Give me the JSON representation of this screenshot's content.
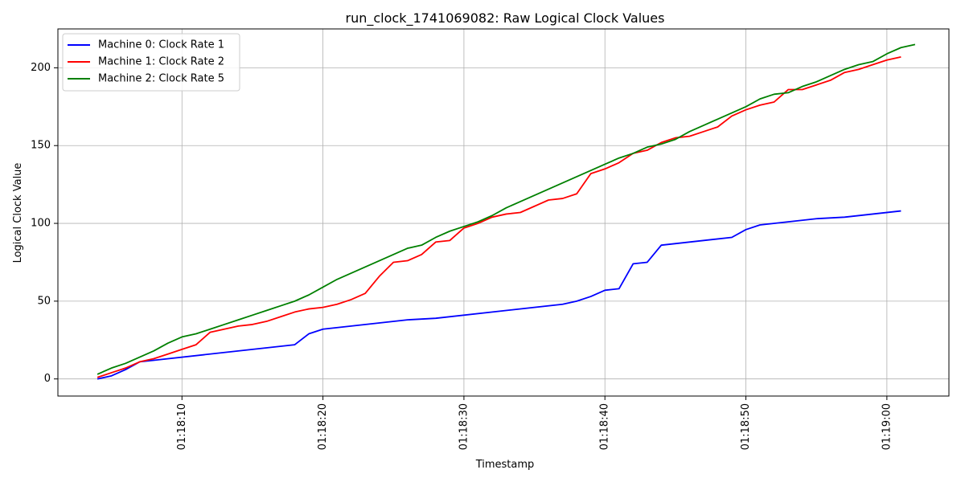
{
  "chart_data": {
    "type": "line",
    "title": "run_clock_1741069082: Raw Logical Clock Values",
    "xlabel": "Timestamp",
    "ylabel": "Logical Clock Value",
    "xlim": [
      "01:18:01.2",
      "01:19:04.4"
    ],
    "ylim": [
      -11,
      225
    ],
    "x_ticks": [
      "01:18:10",
      "01:18:20",
      "01:18:30",
      "01:18:40",
      "01:18:50",
      "01:19:00"
    ],
    "y_ticks": [
      0,
      50,
      100,
      150,
      200
    ],
    "grid": true,
    "legend_position": "top-left",
    "series": [
      {
        "name": "Machine 0: Clock Rate 1",
        "color": "#0000ff",
        "points": [
          [
            "01:18:04",
            0
          ],
          [
            "01:18:05",
            2
          ],
          [
            "01:18:06",
            6
          ],
          [
            "01:18:07",
            11
          ],
          [
            "01:18:08",
            12
          ],
          [
            "01:18:18",
            22
          ],
          [
            "01:18:19",
            29
          ],
          [
            "01:18:20",
            32
          ],
          [
            "01:18:26",
            38
          ],
          [
            "01:18:28",
            39
          ],
          [
            "01:18:37",
            48
          ],
          [
            "01:18:38",
            50
          ],
          [
            "01:18:39",
            53
          ],
          [
            "01:18:40",
            57
          ],
          [
            "01:18:41",
            58
          ],
          [
            "01:18:42",
            74
          ],
          [
            "01:18:43",
            75
          ],
          [
            "01:18:44",
            86
          ],
          [
            "01:18:49",
            91
          ],
          [
            "01:18:50",
            96
          ],
          [
            "01:18:51",
            99
          ],
          [
            "01:18:55",
            103
          ],
          [
            "01:18:57",
            104
          ],
          [
            "01:19:01",
            108
          ]
        ]
      },
      {
        "name": "Machine 1: Clock Rate 2",
        "color": "#ff0000",
        "points": [
          [
            "01:18:04",
            1
          ],
          [
            "01:18:05",
            4
          ],
          [
            "01:18:06",
            7
          ],
          [
            "01:18:07",
            11
          ],
          [
            "01:18:08",
            13
          ],
          [
            "01:18:09",
            16
          ],
          [
            "01:18:10",
            19
          ],
          [
            "01:18:11",
            22
          ],
          [
            "01:18:12",
            30
          ],
          [
            "01:18:13",
            32
          ],
          [
            "01:18:14",
            34
          ],
          [
            "01:18:15",
            35
          ],
          [
            "01:18:16",
            37
          ],
          [
            "01:18:17",
            40
          ],
          [
            "01:18:18",
            43
          ],
          [
            "01:18:19",
            45
          ],
          [
            "01:18:20",
            46
          ],
          [
            "01:18:21",
            48
          ],
          [
            "01:18:22",
            51
          ],
          [
            "01:18:23",
            55
          ],
          [
            "01:18:24",
            66
          ],
          [
            "01:18:25",
            75
          ],
          [
            "01:18:26",
            76
          ],
          [
            "01:18:27",
            80
          ],
          [
            "01:18:28",
            88
          ],
          [
            "01:18:29",
            89
          ],
          [
            "01:18:30",
            97
          ],
          [
            "01:18:31",
            100
          ],
          [
            "01:18:32",
            104
          ],
          [
            "01:18:33",
            106
          ],
          [
            "01:18:34",
            107
          ],
          [
            "01:18:35",
            111
          ],
          [
            "01:18:36",
            115
          ],
          [
            "01:18:37",
            116
          ],
          [
            "01:18:38",
            119
          ],
          [
            "01:18:39",
            132
          ],
          [
            "01:18:40",
            135
          ],
          [
            "01:18:41",
            139
          ],
          [
            "01:18:42",
            145
          ],
          [
            "01:18:43",
            147
          ],
          [
            "01:18:44",
            152
          ],
          [
            "01:18:45",
            155
          ],
          [
            "01:18:46",
            156
          ],
          [
            "01:18:47",
            159
          ],
          [
            "01:18:48",
            162
          ],
          [
            "01:18:49",
            169
          ],
          [
            "01:18:50",
            173
          ],
          [
            "01:18:51",
            176
          ],
          [
            "01:18:52",
            178
          ],
          [
            "01:18:53",
            186
          ],
          [
            "01:18:54",
            186
          ],
          [
            "01:18:55",
            189
          ],
          [
            "01:18:56",
            192
          ],
          [
            "01:18:57",
            197
          ],
          [
            "01:18:58",
            199
          ],
          [
            "01:18:59",
            202
          ],
          [
            "01:19:00",
            205
          ],
          [
            "01:19:01",
            207
          ]
        ]
      },
      {
        "name": "Machine 2: Clock Rate 5",
        "color": "#008000",
        "points": [
          [
            "01:18:04",
            3
          ],
          [
            "01:18:05",
            7
          ],
          [
            "01:18:06",
            10
          ],
          [
            "01:18:07",
            14
          ],
          [
            "01:18:08",
            18
          ],
          [
            "01:18:09",
            23
          ],
          [
            "01:18:10",
            27
          ],
          [
            "01:18:11",
            29
          ],
          [
            "01:18:12",
            32
          ],
          [
            "01:18:13",
            35
          ],
          [
            "01:18:14",
            38
          ],
          [
            "01:18:15",
            41
          ],
          [
            "01:18:16",
            44
          ],
          [
            "01:18:17",
            47
          ],
          [
            "01:18:18",
            50
          ],
          [
            "01:18:19",
            54
          ],
          [
            "01:18:20",
            59
          ],
          [
            "01:18:21",
            64
          ],
          [
            "01:18:22",
            68
          ],
          [
            "01:18:23",
            72
          ],
          [
            "01:18:24",
            76
          ],
          [
            "01:18:25",
            80
          ],
          [
            "01:18:26",
            84
          ],
          [
            "01:18:27",
            86
          ],
          [
            "01:18:28",
            91
          ],
          [
            "01:18:29",
            95
          ],
          [
            "01:18:30",
            98
          ],
          [
            "01:18:31",
            101
          ],
          [
            "01:18:32",
            105
          ],
          [
            "01:18:33",
            110
          ],
          [
            "01:18:34",
            114
          ],
          [
            "01:18:35",
            118
          ],
          [
            "01:18:36",
            122
          ],
          [
            "01:18:37",
            126
          ],
          [
            "01:18:38",
            130
          ],
          [
            "01:18:39",
            134
          ],
          [
            "01:18:40",
            138
          ],
          [
            "01:18:41",
            142
          ],
          [
            "01:18:42",
            145
          ],
          [
            "01:18:43",
            149
          ],
          [
            "01:18:44",
            151
          ],
          [
            "01:18:45",
            154
          ],
          [
            "01:18:46",
            159
          ],
          [
            "01:18:47",
            163
          ],
          [
            "01:18:48",
            167
          ],
          [
            "01:18:49",
            171
          ],
          [
            "01:18:50",
            175
          ],
          [
            "01:18:51",
            180
          ],
          [
            "01:18:52",
            183
          ],
          [
            "01:18:53",
            184
          ],
          [
            "01:18:54",
            188
          ],
          [
            "01:18:55",
            191
          ],
          [
            "01:18:56",
            195
          ],
          [
            "01:18:57",
            199
          ],
          [
            "01:18:58",
            202
          ],
          [
            "01:18:59",
            204
          ],
          [
            "01:19:00",
            209
          ],
          [
            "01:19:01",
            213
          ],
          [
            "01:19:02",
            215
          ]
        ]
      }
    ]
  }
}
